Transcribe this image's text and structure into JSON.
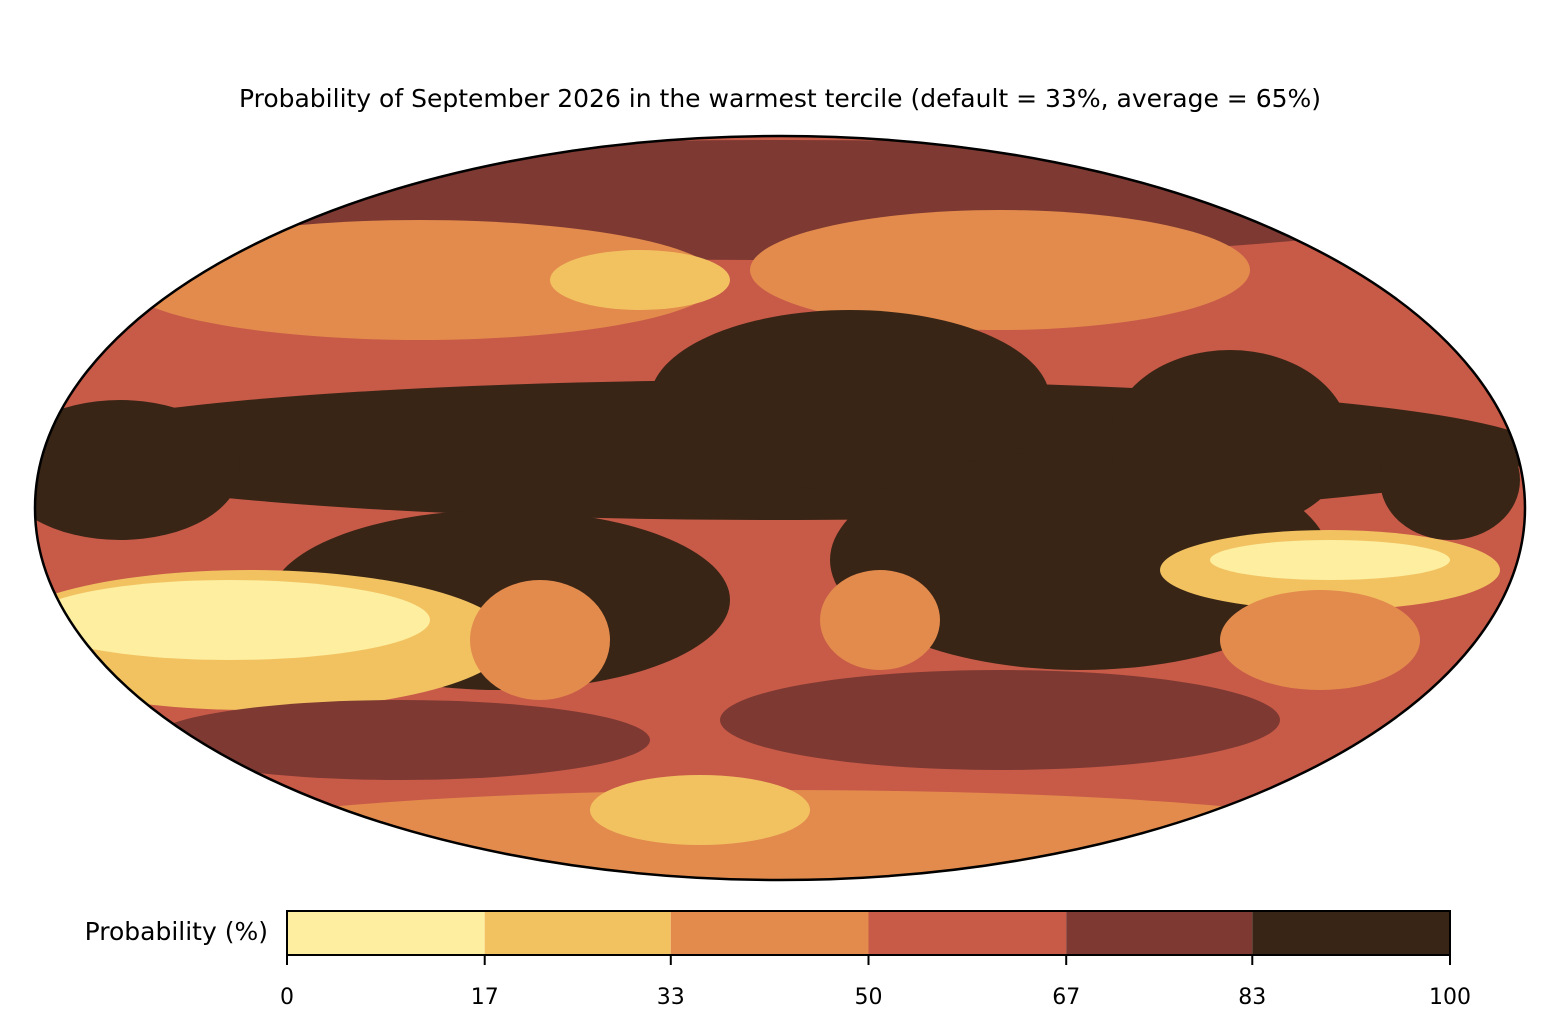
{
  "title": "Probability of September 2026 in the warmest tercile (default = 33%, average = 65%)",
  "colorbar": {
    "label": "Probability (%)",
    "lim": [
      0,
      100
    ],
    "ticks": [
      0,
      17,
      33,
      50,
      67,
      83,
      100
    ],
    "colors": [
      "#fdeea0",
      "#f2c261",
      "#e38b4d",
      "#c85a48",
      "#7d3932",
      "#382516"
    ]
  }
}
